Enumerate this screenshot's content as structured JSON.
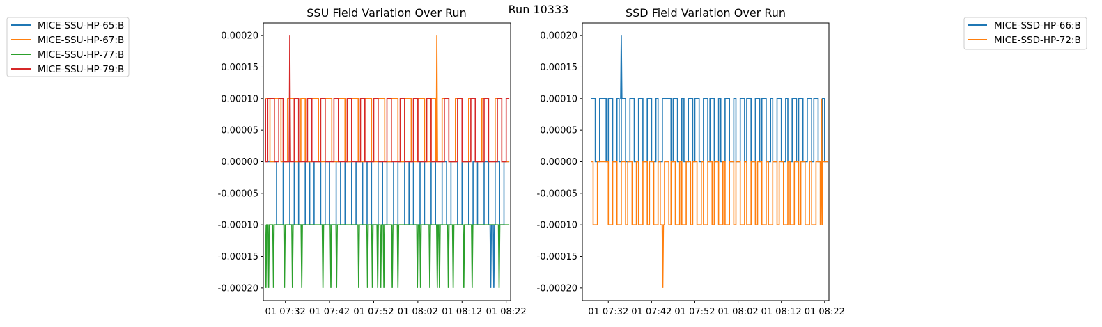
{
  "figure": {
    "suptitle": "Run 10333",
    "colors": {
      "c0": "#1f77b4",
      "c1": "#ff7f0e",
      "c2": "#2ca02c",
      "c3": "#d62728"
    }
  },
  "chart_data": [
    {
      "type": "line",
      "title": "SSU Field Variation Over Run",
      "xlabel": "",
      "ylabel": "",
      "x_tick_labels": [
        "01 07:32",
        "01 07:42",
        "01 07:52",
        "01 08:02",
        "01 08:12",
        "01 08:22"
      ],
      "y_tick_labels": [
        "0.00020",
        "0.00015",
        "0.00010",
        "0.00005",
        "0.00000",
        "-0.00005",
        "-0.00010",
        "-0.00015",
        "-0.00020"
      ],
      "ylim": [
        -0.00022,
        0.00022
      ],
      "x_range_minutes": [
        [
          "07:27",
          "08:23"
        ]
      ],
      "grid": false,
      "legend_position": "outside-left",
      "series": [
        {
          "name": "MICE-SSU-HP-65:B",
          "color": "#1f77b4",
          "baseline": 0.0,
          "alt": -0.0001,
          "toggle_times": [
            "07:30.0",
            "07:31.5",
            "07:33.0",
            "07:34.0",
            "07:35.0",
            "07:36.5",
            "07:37.5",
            "07:38.5",
            "07:40.0",
            "07:41.0",
            "07:42.0",
            "07:43.5",
            "07:44.5",
            "07:45.5",
            "07:47.0",
            "07:48.0",
            "07:49.5",
            "07:50.5",
            "07:51.5",
            "07:53.0",
            "07:54.0",
            "07:55.0",
            "07:56.5",
            "07:57.5",
            "07:59.0",
            "08:00.0",
            "08:01.0",
            "08:02.5",
            "08:03.5",
            "08:05.0",
            "08:06.0",
            "08:07.5",
            "08:08.5",
            "08:09.5",
            "08:11.0",
            "08:12.0",
            "08:13.5",
            "08:14.5",
            "08:15.5",
            "08:17.0",
            "08:18.0",
            "08:19.5",
            "08:20.5",
            "08:21.5"
          ],
          "spikes": [
            {
              "time": "08:18.5",
              "value": -0.0002
            },
            {
              "time": "08:19.2",
              "value": -0.0002
            }
          ]
        },
        {
          "name": "MICE-SSU-HP-67:B",
          "color": "#ff7f0e",
          "baseline": 0.0001,
          "alt": 0.0,
          "toggle_times": [
            "07:28.5",
            "07:29.5",
            "07:31.0",
            "07:32.5",
            "07:34.0",
            "07:35.5",
            "07:36.5",
            "07:38.0",
            "07:39.5",
            "07:41.0",
            "07:42.5",
            "07:44.0",
            "07:45.5",
            "07:47.0",
            "07:48.5",
            "07:50.0",
            "07:51.5",
            "07:53.0",
            "07:54.5",
            "07:56.0",
            "07:57.5",
            "07:59.0",
            "08:00.5",
            "08:02.0",
            "08:03.5",
            "08:05.0",
            "08:06.0",
            "08:07.5",
            "08:09.0",
            "08:10.5",
            "08:12.0",
            "08:13.5",
            "08:15.0",
            "08:16.5",
            "08:18.0",
            "08:19.5",
            "08:21.0"
          ],
          "spikes": [
            {
              "time": "08:06.3",
              "value": 0.0002
            }
          ]
        },
        {
          "name": "MICE-SSU-HP-77:B",
          "color": "#2ca02c",
          "baseline": -0.0001,
          "alt": -0.0002,
          "toggle_times": [],
          "spikes": [
            {
              "time": "07:27.6",
              "value": -0.0002
            },
            {
              "time": "07:28.2",
              "value": -0.0002
            },
            {
              "time": "07:29.3",
              "value": -0.0002
            },
            {
              "time": "07:31.8",
              "value": -0.0002
            },
            {
              "time": "07:33.6",
              "value": -0.0002
            },
            {
              "time": "07:35.7",
              "value": -0.0002
            },
            {
              "time": "07:40.5",
              "value": -0.0002
            },
            {
              "time": "07:42.3",
              "value": -0.0002
            },
            {
              "time": "07:43.6",
              "value": -0.0002
            },
            {
              "time": "07:48.6",
              "value": -0.0002
            },
            {
              "time": "07:50.6",
              "value": -0.0002
            },
            {
              "time": "07:51.7",
              "value": -0.0002
            },
            {
              "time": "07:52.9",
              "value": -0.0002
            },
            {
              "time": "07:53.6",
              "value": -0.0002
            },
            {
              "time": "07:54.3",
              "value": -0.0002
            },
            {
              "time": "07:56.2",
              "value": -0.0002
            },
            {
              "time": "07:57.5",
              "value": -0.0002
            },
            {
              "time": "08:01.9",
              "value": -0.0002
            },
            {
              "time": "08:02.6",
              "value": -0.0002
            },
            {
              "time": "08:04.7",
              "value": -0.0002
            },
            {
              "time": "08:06.4",
              "value": -0.0002
            },
            {
              "time": "08:06.9",
              "value": -0.0002
            },
            {
              "time": "08:08.9",
              "value": -0.0002
            },
            {
              "time": "08:10.0",
              "value": -0.0002
            },
            {
              "time": "08:12.4",
              "value": -0.0002
            },
            {
              "time": "08:14.3",
              "value": -0.0002
            },
            {
              "time": "08:20.4",
              "value": -0.0002
            }
          ]
        },
        {
          "name": "MICE-SSU-HP-79:B",
          "color": "#d62728",
          "baseline": 0.0001,
          "alt": 0.0,
          "toggle_times": [
            "07:27.5",
            "07:28.0",
            "07:29.5",
            "07:30.5",
            "07:31.5",
            "07:34.0",
            "07:35.0",
            "07:37.0",
            "07:38.0",
            "07:40.0",
            "07:41.0",
            "07:43.0",
            "07:44.0",
            "07:46.0",
            "07:47.0",
            "07:49.0",
            "07:50.0",
            "07:52.0",
            "07:53.0",
            "07:55.0",
            "07:56.0",
            "07:58.0",
            "07:59.0",
            "08:01.0",
            "08:02.0",
            "08:04.0",
            "08:05.0",
            "08:08.0",
            "08:09.0",
            "08:11.0",
            "08:12.0",
            "08:14.0",
            "08:15.0",
            "08:17.0",
            "08:18.0",
            "08:20.0",
            "08:21.0",
            "08:22.0"
          ],
          "spikes": [
            {
              "time": "07:33.0",
              "value": 0.0002
            }
          ]
        }
      ]
    },
    {
      "type": "line",
      "title": "SSD Field Variation Over Run",
      "xlabel": "",
      "ylabel": "",
      "x_tick_labels": [
        "01 07:32",
        "01 07:42",
        "01 07:52",
        "01 08:02",
        "01 08:12",
        "01 08:22"
      ],
      "y_tick_labels": [
        "0.00020",
        "0.00015",
        "0.00010",
        "0.00005",
        "0.00000",
        "-0.00005",
        "-0.00010",
        "-0.00015",
        "-0.00020"
      ],
      "ylim": [
        -0.00022,
        0.00022
      ],
      "grid": false,
      "legend_position": "outside-right",
      "series": [
        {
          "name": "MICE-SSD-HP-66:B",
          "color": "#1f77b4",
          "baseline": 0.0001,
          "alt": 0.0,
          "toggle_times": [
            "07:29.0",
            "07:30.0",
            "07:31.5",
            "07:32.0",
            "07:33.0",
            "07:34.0",
            "07:34.5",
            "07:35.0",
            "07:36.0",
            "07:37.0",
            "07:38.0",
            "07:39.0",
            "07:40.0",
            "07:41.0",
            "07:42.0",
            "07:43.0",
            "07:43.5",
            "07:44.5",
            "07:46.5",
            "07:47.0",
            "07:48.0",
            "07:49.0",
            "07:49.5",
            "07:50.5",
            "07:51.5",
            "07:52.0",
            "07:53.0",
            "07:54.0",
            "07:55.0",
            "07:55.5",
            "07:56.5",
            "07:57.5",
            "07:58.0",
            "07:59.0",
            "08:00.0",
            "08:01.0",
            "08:01.5",
            "08:02.5",
            "08:03.5",
            "08:04.0",
            "08:05.0",
            "08:06.0",
            "08:07.0",
            "08:07.5",
            "08:08.5",
            "08:09.5",
            "08:10.0",
            "08:11.0",
            "08:12.0",
            "08:13.0",
            "08:13.5",
            "08:14.5",
            "08:15.5",
            "08:16.0",
            "08:17.0",
            "08:18.0",
            "08:19.0",
            "08:19.5",
            "08:20.5",
            "08:21.5",
            "08:22.0"
          ],
          "spikes": [
            {
              "time": "07:35.0",
              "value": 0.0002
            }
          ]
        },
        {
          "name": "MICE-SSD-HP-72:B",
          "color": "#ff7f0e",
          "baseline": 0.0,
          "alt": -0.0001,
          "toggle_times": [
            "07:28.5",
            "07:29.5",
            "07:32.0",
            "07:33.0",
            "07:34.0",
            "07:35.0",
            "07:36.0",
            "07:36.5",
            "07:37.5",
            "07:38.5",
            "07:39.0",
            "07:40.0",
            "07:41.0",
            "07:41.5",
            "07:42.5",
            "07:43.5",
            "07:44.0",
            "07:45.0",
            "07:46.0",
            "07:46.5",
            "07:47.5",
            "07:48.5",
            "07:49.0",
            "07:50.0",
            "07:51.0",
            "07:51.5",
            "07:52.5",
            "07:53.5",
            "07:54.0",
            "07:55.0",
            "07:56.0",
            "07:56.5",
            "07:57.5",
            "07:58.5",
            "07:59.0",
            "08:00.0",
            "08:01.0",
            "08:01.5",
            "08:02.5",
            "08:03.5",
            "08:04.0",
            "08:05.0",
            "08:06.0",
            "08:06.5",
            "08:07.5",
            "08:08.5",
            "08:09.0",
            "08:10.0",
            "08:11.0",
            "08:11.5",
            "08:12.5",
            "08:13.5",
            "08:14.0",
            "08:15.0",
            "08:16.0",
            "08:16.5",
            "08:17.5",
            "08:18.5",
            "08:19.0",
            "08:20.0",
            "08:21.0",
            "08:21.5"
          ],
          "spikes": [
            {
              "time": "07:44.6",
              "value": -0.0002
            },
            {
              "time": "08:21.3",
              "value": 0.0001
            }
          ]
        }
      ]
    }
  ]
}
